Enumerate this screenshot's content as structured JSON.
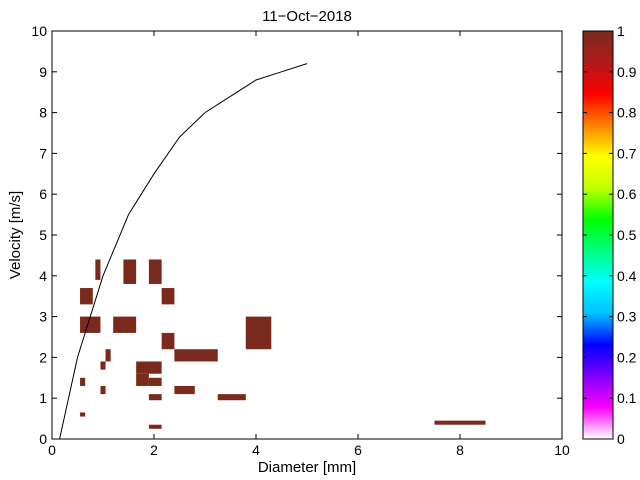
{
  "chart_data": {
    "type": "heatmap",
    "title": "11−Oct−2018",
    "xlabel": "Diameter [mm]",
    "ylabel": "Velocity [m/s]",
    "xlim": [
      0,
      10
    ],
    "ylim": [
      0,
      10
    ],
    "xticks": [
      "0",
      "2",
      "4",
      "6",
      "8",
      "10"
    ],
    "yticks": [
      "0",
      "1",
      "2",
      "3",
      "4",
      "5",
      "6",
      "7",
      "8",
      "9",
      "10"
    ],
    "grid": false,
    "cell_color": "#7a2a1c",
    "cells": [
      {
        "x0": 0.85,
        "x1": 0.95,
        "y0": 3.9,
        "y1": 4.4,
        "value": 1
      },
      {
        "x0": 1.4,
        "x1": 1.65,
        "y0": 3.8,
        "y1": 4.4,
        "value": 1
      },
      {
        "x0": 1.9,
        "x1": 2.15,
        "y0": 3.8,
        "y1": 4.4,
        "value": 1
      },
      {
        "x0": 0.55,
        "x1": 0.8,
        "y0": 3.3,
        "y1": 3.7,
        "value": 1
      },
      {
        "x0": 2.15,
        "x1": 2.4,
        "y0": 3.3,
        "y1": 3.7,
        "value": 1
      },
      {
        "x0": 0.55,
        "x1": 0.95,
        "y0": 2.6,
        "y1": 3.0,
        "value": 1
      },
      {
        "x0": 1.2,
        "x1": 1.65,
        "y0": 2.6,
        "y1": 3.0,
        "value": 1
      },
      {
        "x0": 3.8,
        "x1": 4.3,
        "y0": 2.2,
        "y1": 3.0,
        "value": 1
      },
      {
        "x0": 2.15,
        "x1": 2.4,
        "y0": 2.2,
        "y1": 2.6,
        "value": 1
      },
      {
        "x0": 2.4,
        "x1": 3.25,
        "y0": 1.9,
        "y1": 2.2,
        "value": 1
      },
      {
        "x0": 1.05,
        "x1": 1.15,
        "y0": 1.9,
        "y1": 2.2,
        "value": 1
      },
      {
        "x0": 0.95,
        "x1": 1.05,
        "y0": 1.7,
        "y1": 1.9,
        "value": 1
      },
      {
        "x0": 1.65,
        "x1": 2.15,
        "y0": 1.6,
        "y1": 1.9,
        "value": 1
      },
      {
        "x0": 1.65,
        "x1": 1.9,
        "y0": 1.3,
        "y1": 1.6,
        "value": 1
      },
      {
        "x0": 1.9,
        "x1": 2.15,
        "y0": 1.3,
        "y1": 1.5,
        "value": 1
      },
      {
        "x0": 0.55,
        "x1": 0.65,
        "y0": 1.3,
        "y1": 1.5,
        "value": 1
      },
      {
        "x0": 0.95,
        "x1": 1.05,
        "y0": 1.1,
        "y1": 1.3,
        "value": 1
      },
      {
        "x0": 2.4,
        "x1": 2.8,
        "y0": 1.1,
        "y1": 1.3,
        "value": 1
      },
      {
        "x0": 1.9,
        "x1": 2.15,
        "y0": 0.95,
        "y1": 1.1,
        "value": 1
      },
      {
        "x0": 3.25,
        "x1": 3.8,
        "y0": 0.95,
        "y1": 1.1,
        "value": 1
      },
      {
        "x0": 0.55,
        "x1": 0.65,
        "y0": 0.55,
        "y1": 0.65,
        "value": 1
      },
      {
        "x0": 7.5,
        "x1": 8.5,
        "y0": 0.35,
        "y1": 0.45,
        "value": 1
      },
      {
        "x0": 1.9,
        "x1": 2.15,
        "y0": 0.25,
        "y1": 0.35,
        "value": 1
      }
    ],
    "line": {
      "x": [
        0.15,
        0.5,
        1.0,
        1.5,
        2.0,
        2.5,
        3.0,
        3.5,
        4.0,
        4.5,
        5.0
      ],
      "y": [
        0.0,
        2.0,
        4.0,
        5.5,
        6.5,
        7.4,
        8.0,
        8.4,
        8.8,
        9.0,
        9.2
      ]
    },
    "colorbar": {
      "min": 0,
      "max": 1,
      "ticks": [
        "0",
        "0.1",
        "0.2",
        "0.3",
        "0.4",
        "0.5",
        "0.6",
        "0.7",
        "0.8",
        "0.9",
        "1"
      ],
      "placement": "right",
      "colormap": [
        "#ffffff",
        "#ff00ff",
        "#8000ff",
        "#0000ff",
        "#00c0ff",
        "#00ffff",
        "#00ff80",
        "#00ff00",
        "#c0ff00",
        "#ffff00",
        "#ff8000",
        "#ff0000",
        "#b01a1a",
        "#7a2a1c"
      ]
    }
  }
}
